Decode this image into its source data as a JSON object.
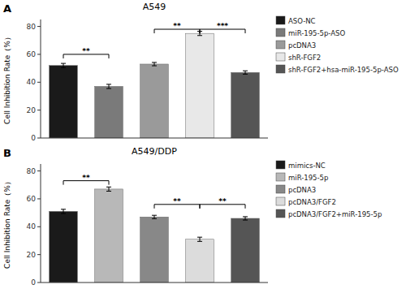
{
  "chart_data": [
    {
      "type": "bar",
      "title": "A549",
      "panel_label": "A",
      "ylabel": "Cell Inhibition Rate（%）",
      "categories": [
        "ASO-NC",
        "miR-195-5p-ASO",
        "pcDNA3",
        "shR-FGF2",
        "shR-FGF2+hsa-miR-195-5p-ASO"
      ],
      "values": [
        52,
        37,
        53,
        75,
        47
      ],
      "errors": [
        1.5,
        1.5,
        1.2,
        1.5,
        1.2
      ],
      "colors": [
        "#1a1a1a",
        "#7a7a7a",
        "#9a9a9a",
        "#e8e8e8",
        "#555555"
      ],
      "annotations": [
        {
          "text": "**",
          "from": 0,
          "to": 1,
          "y": 60
        },
        {
          "text": "**",
          "from": 2,
          "to": 3,
          "y": 78
        },
        {
          "text": "***",
          "from": 3,
          "to": 4,
          "y": 78
        }
      ],
      "ylim": [
        0,
        85
      ],
      "yticks": [
        0,
        20,
        40,
        60,
        80
      ],
      "grid": false,
      "legend": "right",
      "tick_labels": "y"
    },
    {
      "type": "bar",
      "title": "A549/DDP",
      "panel_label": "B",
      "ylabel": "Cell Inhibition Rate（%）",
      "categories": [
        "mimics-NC",
        "miR-195-5p",
        "pcDNA3",
        "pcDNA3/FGF2",
        "pcDNA3/FGF2+miR-195-5p"
      ],
      "values": [
        51,
        67,
        47,
        31,
        46
      ],
      "errors": [
        1.5,
        1.5,
        1.2,
        1.5,
        1.2
      ],
      "colors": [
        "#1a1a1a",
        "#b8b8b8",
        "#888888",
        "#dcdcdc",
        "#555555"
      ],
      "annotations": [
        {
          "text": "**",
          "from": 0,
          "to": 1,
          "y": 73
        },
        {
          "text": "**",
          "from": 2,
          "to": 3,
          "y": 56
        },
        {
          "text": "**",
          "from": 3,
          "to": 4,
          "y": 56
        }
      ],
      "ylim": [
        0,
        85
      ],
      "yticks": [
        0,
        20,
        40,
        60,
        80
      ],
      "grid": false,
      "legend": "right",
      "tick_labels": "y"
    }
  ]
}
